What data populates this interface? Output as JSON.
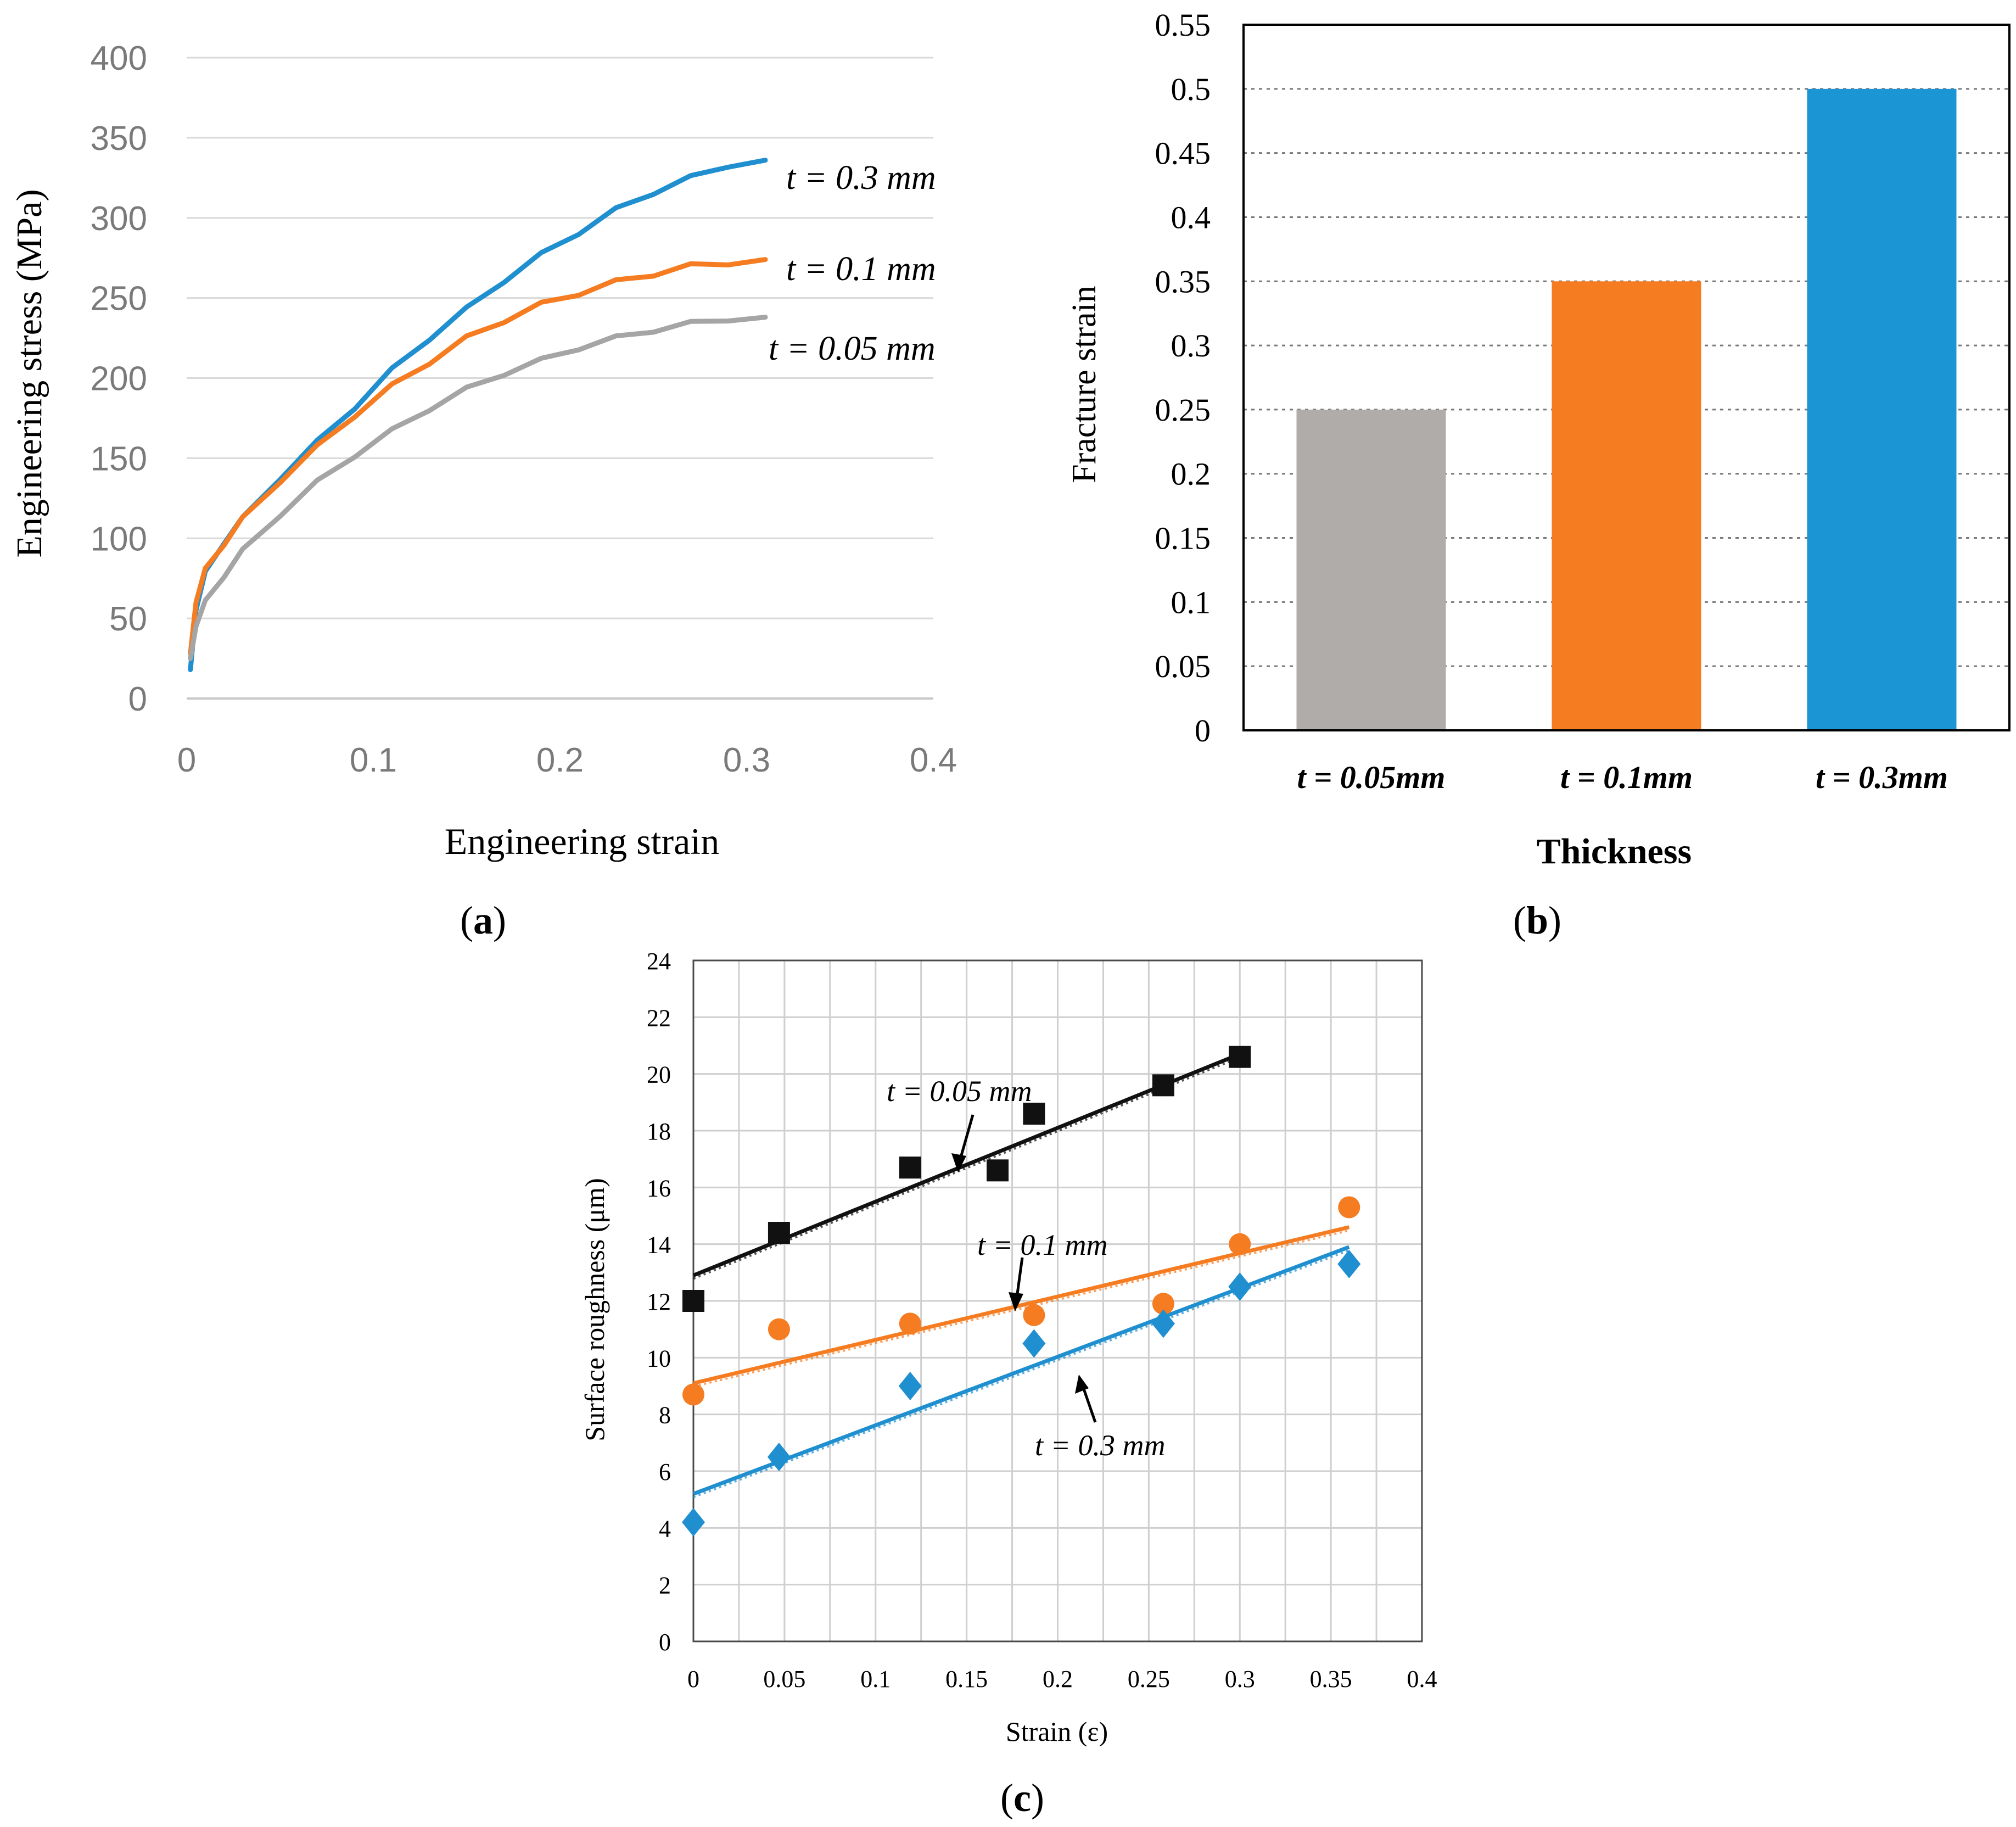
{
  "panels": {
    "a": {
      "caption_open": "(",
      "caption_letter": "a",
      "caption_close": ")"
    },
    "b": {
      "caption_open": "(",
      "caption_letter": "b",
      "caption_close": ")"
    },
    "c": {
      "caption_open": "(",
      "caption_letter": "c",
      "caption_close": ")"
    }
  },
  "colors": {
    "gray": "#a5a5a5",
    "orange": "#f57c21",
    "blue": "#1f8fd0",
    "black": "#111111"
  },
  "chart_data": [
    {
      "id": "a",
      "type": "line",
      "title": "",
      "xlabel": "Engineering strain",
      "ylabel": "Engineering stress (MPa)",
      "xlim": [
        0,
        0.4
      ],
      "ylim": [
        0,
        400
      ],
      "xticks": [
        "0",
        "0.1",
        "0.2",
        "0.3",
        "0.4"
      ],
      "yticks": [
        "0",
        "50",
        "100",
        "150",
        "200",
        "250",
        "300",
        "350",
        "400"
      ],
      "grid": "horizontal",
      "series": [
        {
          "name": "t = 0.3 mm",
          "color": "blue",
          "x": [
            0.002,
            0.005,
            0.01,
            0.02,
            0.03,
            0.05,
            0.07,
            0.09,
            0.11,
            0.13,
            0.15,
            0.17,
            0.19,
            0.21,
            0.23,
            0.25,
            0.27,
            0.29,
            0.31
          ],
          "y": [
            18,
            55,
            78,
            98,
            112,
            138,
            160,
            182,
            205,
            225,
            243,
            261,
            277,
            291,
            305,
            316,
            325,
            333,
            336
          ]
        },
        {
          "name": "t = 0.1 mm",
          "color": "orange",
          "x": [
            0.002,
            0.005,
            0.01,
            0.02,
            0.03,
            0.05,
            0.07,
            0.09,
            0.11,
            0.13,
            0.15,
            0.17,
            0.19,
            0.21,
            0.23,
            0.25,
            0.27,
            0.29,
            0.31
          ],
          "y": [
            28,
            60,
            80,
            97,
            112,
            136,
            157,
            177,
            195,
            210,
            225,
            236,
            246,
            253,
            260,
            265,
            270,
            272,
            274
          ]
        },
        {
          "name": "t = 0.05 mm",
          "color": "gray",
          "x": [
            0.002,
            0.005,
            0.01,
            0.02,
            0.03,
            0.05,
            0.07,
            0.09,
            0.11,
            0.13,
            0.15,
            0.17,
            0.19,
            0.21,
            0.23,
            0.25,
            0.27,
            0.29,
            0.31
          ],
          "y": [
            25,
            45,
            60,
            77,
            92,
            115,
            135,
            152,
            167,
            181,
            193,
            203,
            211,
            219,
            225,
            230,
            234,
            237,
            238
          ]
        }
      ],
      "annotations": [
        "t = 0.3 mm",
        "t = 0.1 mm",
        "t = 0.05 mm"
      ]
    },
    {
      "id": "b",
      "type": "bar",
      "title": "",
      "xlabel": "Thickness",
      "ylabel": "Fracture strain",
      "categories": [
        "t = 0.05mm",
        "t = 0.1mm",
        "t = 0.3mm"
      ],
      "values": [
        0.25,
        0.35,
        0.5
      ],
      "bar_colors": [
        "#b0aca9",
        "#f57c21",
        "#1b95d3"
      ],
      "ylim": [
        0,
        0.55
      ],
      "yticks": [
        "0",
        "0.05",
        "0.1",
        "0.15",
        "0.2",
        "0.25",
        "0.3",
        "0.35",
        "0.4",
        "0.45",
        "0.5",
        "0.55"
      ],
      "grid": "horizontal dotted"
    },
    {
      "id": "c",
      "type": "scatter",
      "title": "",
      "xlabel": "Strain (ε)",
      "ylabel": "Surface roughness (μm)",
      "xlim": [
        0,
        0.4
      ],
      "ylim": [
        0,
        24
      ],
      "xticks": [
        "0",
        "0.05",
        "0.1",
        "0.15",
        "0.2",
        "0.25",
        "0.3",
        "0.35",
        "0.4"
      ],
      "yticks": [
        "0",
        "2",
        "4",
        "6",
        "8",
        "10",
        "12",
        "14",
        "16",
        "18",
        "20",
        "22",
        "24"
      ],
      "grid": "both",
      "series": [
        {
          "name": "t = 0.05 mm",
          "marker": "square",
          "color": "black",
          "x": [
            0,
            0.047,
            0.119,
            0.167,
            0.187,
            0.258,
            0.3
          ],
          "y": [
            12,
            14.4,
            16.7,
            16.6,
            18.6,
            19.6,
            20.6
          ],
          "fit": {
            "x": [
              0,
              0.3
            ],
            "y": [
              12.9,
              20.7
            ]
          }
        },
        {
          "name": "t = 0.1 mm",
          "marker": "circle",
          "color": "orange",
          "x": [
            0,
            0.047,
            0.119,
            0.187,
            0.258,
            0.3,
            0.36
          ],
          "y": [
            8.7,
            11,
            11.2,
            11.5,
            11.9,
            14,
            15.3
          ],
          "fit": {
            "x": [
              0,
              0.36
            ],
            "y": [
              9.1,
              14.6
            ]
          }
        },
        {
          "name": "t = 0.3 mm",
          "marker": "diamond",
          "color": "blue",
          "x": [
            0,
            0.047,
            0.119,
            0.187,
            0.258,
            0.3,
            0.36
          ],
          "y": [
            4.2,
            6.5,
            9,
            10.5,
            11.2,
            12.5,
            13.3
          ],
          "fit": {
            "x": [
              0,
              0.36
            ],
            "y": [
              5.2,
              13.9
            ]
          }
        }
      ],
      "annotations": [
        "t = 0.05 mm",
        "t = 0.1 mm",
        "t = 0.3 mm"
      ]
    }
  ]
}
